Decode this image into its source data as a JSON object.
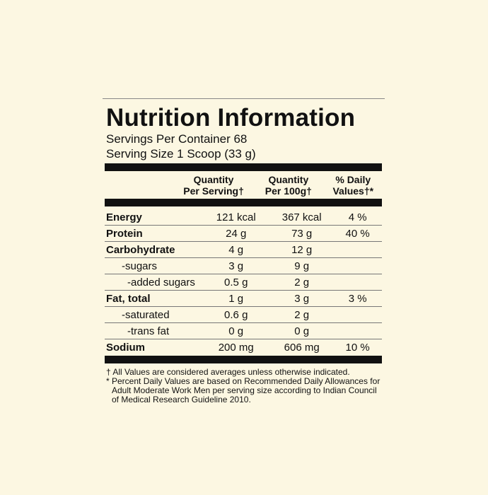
{
  "header": {
    "title": "Nutrition Information",
    "servings_per_container": "Servings Per Container 68",
    "serving_size": "Serving Size 1 Scoop (33 g)"
  },
  "table": {
    "columns": [
      [
        "Quantity",
        "Per Serving†"
      ],
      [
        "Quantity",
        "Per 100g†"
      ],
      [
        "% Daily",
        "Values†*"
      ]
    ],
    "rows": [
      [
        "Energy",
        "121 kcal",
        "367 kcal",
        "4 %"
      ],
      [
        "Protein",
        "24 g",
        "73 g",
        "40 %"
      ],
      [
        "Carbohydrate",
        "4 g",
        "12 g",
        null
      ],
      [
        "-sugars",
        "3 g",
        "9 g",
        null
      ],
      [
        "-added sugars",
        "0.5 g",
        "2 g",
        null
      ],
      [
        "Fat, total",
        "1 g",
        "3 g",
        "3 %"
      ],
      [
        "-saturated",
        "0.6 g",
        "2 g",
        null
      ],
      [
        "-trans fat",
        "0 g",
        "0 g",
        null
      ],
      [
        "Sodium",
        "200 mg",
        "606 mg",
        "10 %"
      ]
    ]
  },
  "footnotes": [
    "† All Values are considered averages unless otherwise indicated.",
    "* Percent Daily Values are based on Recommended Daily Allowances for Adult Moderate Work Men per serving size according to Indian Council of Medical Research Guideline 2010."
  ]
}
